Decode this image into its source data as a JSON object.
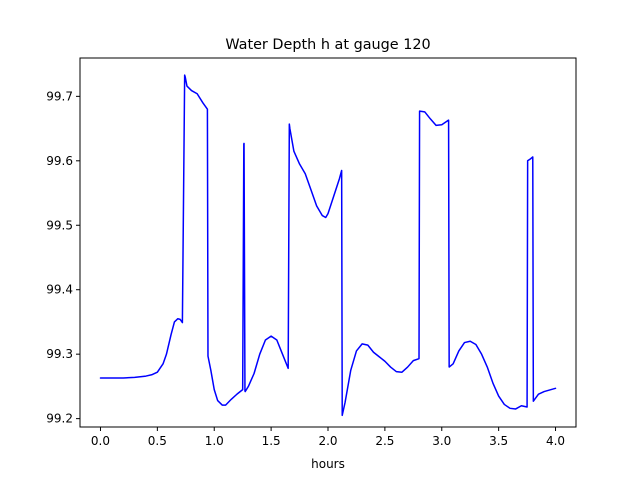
{
  "chart_data": {
    "type": "line",
    "title": "Water Depth h at gauge 120",
    "xlabel": "hours",
    "ylabel": "",
    "xlim": [
      -0.18,
      4.18
    ],
    "ylim": [
      99.187,
      99.7595
    ],
    "xticks": [
      0.0,
      0.5,
      1.0,
      1.5,
      2.0,
      2.5,
      3.0,
      3.5,
      4.0
    ],
    "xtick_labels": [
      "0.0",
      "0.5",
      "1.0",
      "1.5",
      "2.0",
      "2.5",
      "3.0",
      "3.5",
      "4.0"
    ],
    "yticks": [
      99.2,
      99.3,
      99.4,
      99.5,
      99.6,
      99.7
    ],
    "ytick_labels": [
      "99.2",
      "99.3",
      "99.4",
      "99.5",
      "99.6",
      "99.7"
    ],
    "grid": false,
    "legend": "none",
    "series": [
      {
        "color": "#0000ff",
        "x": [
          0.0,
          0.2,
          0.3,
          0.4,
          0.45,
          0.5,
          0.55,
          0.58,
          0.62,
          0.65,
          0.68,
          0.7,
          0.72,
          0.74,
          0.745,
          0.76,
          0.8,
          0.85,
          0.9,
          0.94,
          0.945,
          0.97,
          1.0,
          1.03,
          1.07,
          1.1,
          1.15,
          1.2,
          1.25,
          1.26,
          1.262,
          1.27,
          1.272,
          1.3,
          1.35,
          1.4,
          1.45,
          1.5,
          1.55,
          1.6,
          1.65,
          1.66,
          1.665,
          1.7,
          1.75,
          1.8,
          1.85,
          1.9,
          1.95,
          1.98,
          2.0,
          2.05,
          2.1,
          2.12,
          2.125,
          2.15,
          2.2,
          2.25,
          2.3,
          2.35,
          2.4,
          2.45,
          2.5,
          2.55,
          2.6,
          2.65,
          2.7,
          2.75,
          2.8,
          2.805,
          2.85,
          2.9,
          2.95,
          3.0,
          3.05,
          3.06,
          3.065,
          3.1,
          3.15,
          3.2,
          3.25,
          3.3,
          3.35,
          3.4,
          3.45,
          3.5,
          3.55,
          3.6,
          3.65,
          3.7,
          3.75,
          3.755,
          3.78,
          3.8,
          3.805,
          3.85,
          3.9,
          4.0
        ],
        "y": [
          99.263,
          99.263,
          99.264,
          99.266,
          99.268,
          99.272,
          99.285,
          99.3,
          99.33,
          99.35,
          99.355,
          99.354,
          99.349,
          99.733,
          99.73,
          99.716,
          99.709,
          99.704,
          99.69,
          99.68,
          99.297,
          99.275,
          99.245,
          99.228,
          99.221,
          99.221,
          99.23,
          99.238,
          99.245,
          99.626,
          99.627,
          99.243,
          99.242,
          99.25,
          99.27,
          99.3,
          99.322,
          99.328,
          99.322,
          99.3,
          99.278,
          99.657,
          99.65,
          99.615,
          99.595,
          99.58,
          99.555,
          99.53,
          99.515,
          99.512,
          99.518,
          99.545,
          99.572,
          99.585,
          99.205,
          99.225,
          99.275,
          99.305,
          99.316,
          99.314,
          99.303,
          99.296,
          99.289,
          99.28,
          99.273,
          99.272,
          99.28,
          99.29,
          99.293,
          99.677,
          99.676,
          99.665,
          99.655,
          99.656,
          99.662,
          99.663,
          99.28,
          99.285,
          99.305,
          99.318,
          99.32,
          99.315,
          99.3,
          99.28,
          99.255,
          99.235,
          99.222,
          99.216,
          99.215,
          99.22,
          99.218,
          99.6,
          99.603,
          99.606,
          99.227,
          99.238,
          99.242,
          99.247
        ]
      }
    ]
  }
}
